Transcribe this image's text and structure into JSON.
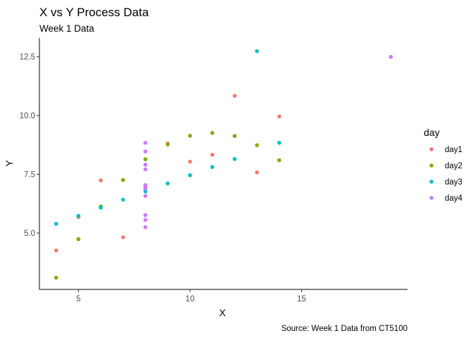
{
  "chart_data": {
    "type": "scatter",
    "title": "X vs Y Process Data",
    "subtitle": "Week 1 Data",
    "xlabel": "X",
    "ylabel": "Y",
    "caption": "Source: Week 1 Data from CT5100",
    "xlim": [
      3.25,
      19.75
    ],
    "ylim": [
      2.6,
      13.3
    ],
    "x_ticks": [
      5,
      10,
      15
    ],
    "y_ticks": [
      5.0,
      7.5,
      10.0,
      12.5
    ],
    "x_tick_labels": [
      "5",
      "10",
      "15"
    ],
    "y_tick_labels": [
      "5.0",
      "7.5",
      "10.0",
      "12.5"
    ],
    "grid": false,
    "legend": {
      "title": "day",
      "position": "right"
    },
    "series": [
      {
        "name": "day1",
        "color": "#F8766D",
        "points": [
          [
            10,
            8.04
          ],
          [
            8,
            6.95
          ],
          [
            13,
            7.58
          ],
          [
            9,
            8.81
          ],
          [
            11,
            8.33
          ],
          [
            14,
            9.96
          ],
          [
            6,
            7.24
          ],
          [
            4,
            4.26
          ],
          [
            12,
            10.84
          ],
          [
            7,
            4.82
          ],
          [
            5,
            5.68
          ]
        ]
      },
      {
        "name": "day2",
        "color": "#7CAE00",
        "points": [
          [
            10,
            9.14
          ],
          [
            8,
            8.14
          ],
          [
            13,
            8.74
          ],
          [
            9,
            8.77
          ],
          [
            11,
            9.26
          ],
          [
            14,
            8.1
          ],
          [
            6,
            6.13
          ],
          [
            4,
            3.1
          ],
          [
            12,
            9.13
          ],
          [
            7,
            7.26
          ],
          [
            5,
            4.74
          ]
        ]
      },
      {
        "name": "day3",
        "color": "#00BFC4",
        "points": [
          [
            10,
            7.46
          ],
          [
            8,
            6.77
          ],
          [
            13,
            12.74
          ],
          [
            9,
            7.11
          ],
          [
            11,
            7.81
          ],
          [
            14,
            8.84
          ],
          [
            6,
            6.08
          ],
          [
            4,
            5.39
          ],
          [
            12,
            8.15
          ],
          [
            7,
            6.42
          ],
          [
            5,
            5.73
          ]
        ]
      },
      {
        "name": "day4",
        "color": "#C77CFF",
        "points": [
          [
            8,
            6.58
          ],
          [
            8,
            5.76
          ],
          [
            8,
            7.71
          ],
          [
            8,
            8.84
          ],
          [
            8,
            8.47
          ],
          [
            8,
            7.04
          ],
          [
            8,
            5.25
          ],
          [
            19,
            12.5
          ],
          [
            8,
            5.56
          ],
          [
            8,
            7.91
          ],
          [
            8,
            6.89
          ]
        ]
      }
    ]
  }
}
